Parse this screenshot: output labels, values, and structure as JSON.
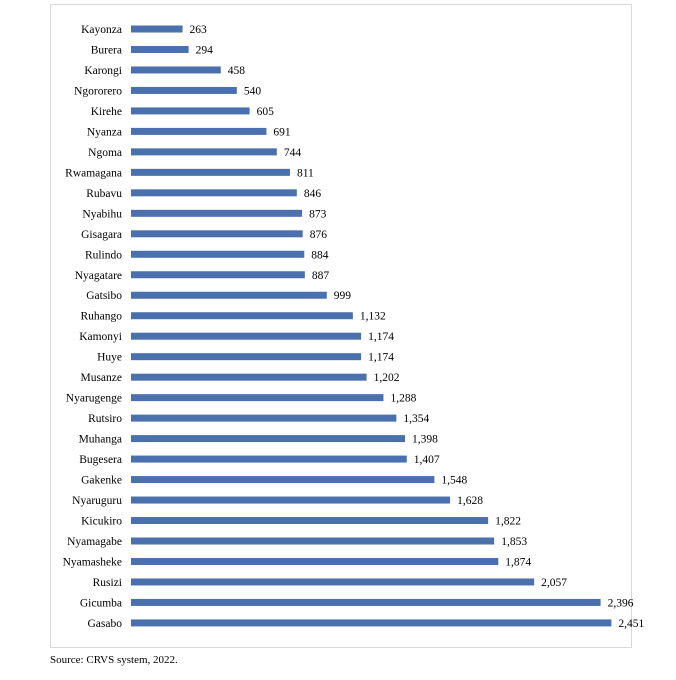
{
  "chart_data": {
    "type": "bar",
    "orientation": "horizontal",
    "categories": [
      "Kayonza",
      "Burera",
      "Karongi",
      "Ngororero",
      "Kirehe",
      "Nyanza",
      "Ngoma",
      "Rwamagana",
      "Rubavu",
      "Nyabihu",
      "Gisagara",
      "Rulindo",
      "Nyagatare",
      "Gatsibo",
      "Ruhango",
      "Kamonyi",
      "Huye",
      "Musanze",
      "Nyarugenge",
      "Rutsiro",
      "Muhanga",
      "Bugesera",
      "Gakenke",
      "Nyaruguru",
      "Kicukiro",
      "Nyamagabe",
      "Nyamasheke",
      "Rusizi",
      "Gicumba",
      "Gasabo"
    ],
    "values": [
      263,
      294,
      458,
      540,
      605,
      691,
      744,
      811,
      846,
      873,
      876,
      884,
      887,
      999,
      1132,
      1174,
      1174,
      1202,
      1288,
      1354,
      1398,
      1407,
      1548,
      1628,
      1822,
      1853,
      1874,
      2057,
      2396,
      2451
    ],
    "value_labels": [
      "263",
      "294",
      "458",
      "540",
      "605",
      "691",
      "744",
      "811",
      "846",
      "873",
      "876",
      "884",
      "887",
      "999",
      "1,132",
      "1,174",
      "1,174",
      "1,202",
      "1,288",
      "1,354",
      "1,398",
      "1,407",
      "1,548",
      "1,628",
      "1,822",
      "1,853",
      "1,874",
      "2,057",
      "2,396",
      "2,451"
    ],
    "title": "",
    "xlabel": "",
    "ylabel": "",
    "xlim": [
      0,
      2500
    ],
    "grid": false,
    "legend": "none",
    "bar_color": "#4a70ad"
  },
  "source": "Source: CRVS system, 2022."
}
